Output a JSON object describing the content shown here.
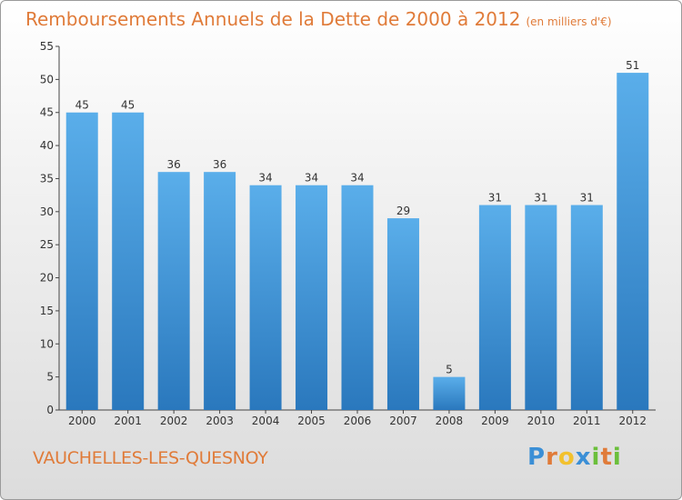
{
  "header": {
    "title": "Remboursements Annuels de la Dette de 2000 à 2012",
    "unit": "(en milliers d'€)"
  },
  "footer": {
    "city": "VAUCHELLES-LES-QUESNOY",
    "logo": "Proxiti",
    "logo_parts": [
      "P",
      "r",
      "o",
      "x",
      "i",
      "t",
      "i"
    ]
  },
  "colors": {
    "bar_top": "#5aaeea",
    "bar_bottom": "#2a78bd",
    "title": "#e07b39"
  },
  "chart_data": {
    "type": "bar",
    "title": "Remboursements Annuels de la Dette de 2000 à 2012",
    "xlabel": "",
    "ylabel": "",
    "categories": [
      "2000",
      "2001",
      "2002",
      "2003",
      "2004",
      "2005",
      "2006",
      "2007",
      "2008",
      "2009",
      "2010",
      "2011",
      "2012"
    ],
    "values": [
      45,
      45,
      36,
      36,
      34,
      34,
      34,
      29,
      5,
      31,
      31,
      31,
      51
    ],
    "ylim": [
      0,
      55
    ],
    "yticks": [
      0,
      5,
      10,
      15,
      20,
      25,
      30,
      35,
      40,
      45,
      50,
      55
    ],
    "grid": false
  }
}
